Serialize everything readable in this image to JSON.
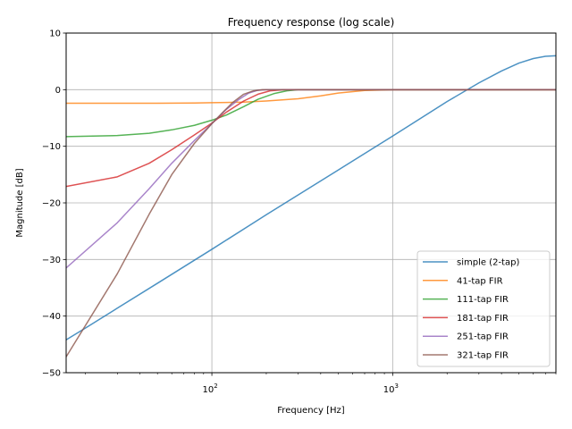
{
  "chart_data": {
    "type": "line",
    "title": "Frequency response (log scale)",
    "xlabel": "Frequency [Hz]",
    "ylabel": "Magnitude [dB]",
    "xscale": "log",
    "xlim": [
      15.625,
      8000
    ],
    "ylim": [
      -50,
      10
    ],
    "grid": true,
    "legend_position": "lower-right",
    "x_ticks": [
      {
        "value": 100,
        "base": "10",
        "exp": "2"
      },
      {
        "value": 1000,
        "base": "10",
        "exp": "3"
      }
    ],
    "y_ticks": [
      {
        "value": 10,
        "label": "10"
      },
      {
        "value": 0,
        "label": "0"
      },
      {
        "value": -10,
        "label": "−10"
      },
      {
        "value": -20,
        "label": "−20"
      },
      {
        "value": -30,
        "label": "−30"
      },
      {
        "value": -40,
        "label": "−40"
      },
      {
        "value": -50,
        "label": "−50"
      }
    ],
    "series": [
      {
        "name": "simple (2-tap)",
        "color": "#1f77b4",
        "x": [
          15.625,
          20,
          30,
          50,
          100,
          200,
          500,
          1000,
          2000,
          3000,
          4000,
          5000,
          6000,
          7000,
          8000
        ],
        "y": [
          -44.2,
          -42.1,
          -38.6,
          -34.2,
          -28.2,
          -22.1,
          -14.2,
          -8.2,
          -2.1,
          1.2,
          3.3,
          4.7,
          5.5,
          5.9,
          6.0
        ]
      },
      {
        "name": "41-tap FIR",
        "color": "#ff7f0e",
        "x": [
          15.625,
          50,
          80,
          100,
          150,
          200,
          300,
          400,
          500,
          700,
          1000,
          8000
        ],
        "y": [
          -2.4,
          -2.4,
          -2.35,
          -2.3,
          -2.2,
          -2.0,
          -1.6,
          -1.1,
          -0.6,
          -0.15,
          0,
          0
        ]
      },
      {
        "name": "111-tap FIR",
        "color": "#2ca02c",
        "x": [
          15.625,
          30,
          45,
          60,
          80,
          100,
          120,
          150,
          180,
          220,
          260,
          300,
          400,
          8000
        ],
        "y": [
          -8.3,
          -8.1,
          -7.7,
          -7.1,
          -6.3,
          -5.4,
          -4.5,
          -3.0,
          -1.7,
          -0.7,
          -0.2,
          0,
          0,
          0
        ]
      },
      {
        "name": "181-tap FIR",
        "color": "#d62728",
        "x": [
          15.625,
          30,
          45,
          60,
          80,
          100,
          120,
          150,
          180,
          210,
          250,
          8000
        ],
        "y": [
          -17.1,
          -15.4,
          -13.0,
          -10.6,
          -8.0,
          -5.9,
          -4.0,
          -2.0,
          -0.8,
          -0.2,
          0,
          0
        ]
      },
      {
        "name": "251-tap FIR",
        "color": "#9467bd",
        "x": [
          15.625,
          30,
          45,
          60,
          80,
          100,
          120,
          140,
          160,
          180,
          200,
          8000
        ],
        "y": [
          -31.5,
          -23.5,
          -17.5,
          -13.0,
          -9.0,
          -6.0,
          -3.5,
          -1.8,
          -0.6,
          -0.1,
          0,
          0
        ]
      },
      {
        "name": "321-tap FIR",
        "color": "#8c564b",
        "x": [
          15.625,
          30,
          45,
          60,
          80,
          100,
          115,
          130,
          150,
          170,
          190,
          8000
        ],
        "y": [
          -47.2,
          -32.5,
          -22.0,
          -15.0,
          -9.5,
          -6.0,
          -4.0,
          -2.3,
          -0.8,
          -0.2,
          0,
          0
        ]
      }
    ]
  }
}
